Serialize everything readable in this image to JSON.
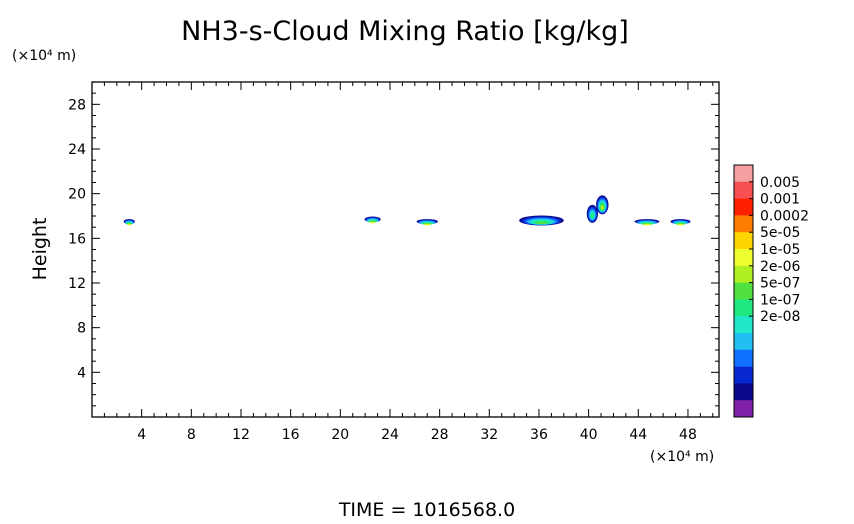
{
  "chart_data": {
    "type": "heatmap",
    "title": "NH3-s-Cloud Mixing Ratio [kg/kg]",
    "ylabel": "Height",
    "yunit": "(×10⁴ m)",
    "xunit": "(×10⁴ m)",
    "footer": "TIME  =  1016568.0",
    "xlim": [
      0,
      50.5
    ],
    "ylim": [
      0,
      30
    ],
    "xticks": [
      4,
      8,
      12,
      16,
      20,
      24,
      28,
      32,
      36,
      40,
      44,
      48
    ],
    "yticks": [
      4,
      8,
      12,
      16,
      20,
      24,
      28
    ],
    "colorbar": {
      "labels": [
        "0.005",
        "0.001",
        "0.0002",
        "5e-05",
        "1e-05",
        "2e-06",
        "5e-07",
        "1e-07",
        "2e-08"
      ],
      "colors": [
        "#f4a0a0",
        "#f85050",
        "#ff2000",
        "#ff7d00",
        "#ffd500",
        "#eeff30",
        "#b0f020",
        "#50e040",
        "#20e880",
        "#20e8c8",
        "#20c0f0",
        "#1070ff",
        "#0828d0",
        "#080888",
        "#8020a8"
      ]
    },
    "cloud_patches": [
      {
        "x": 3.0,
        "y": 17.5,
        "w": 0.9,
        "h": 0.45,
        "level": 9
      },
      {
        "x": 22.6,
        "y": 17.7,
        "w": 1.3,
        "h": 0.5,
        "level": 9
      },
      {
        "x": 27.0,
        "y": 17.5,
        "w": 1.7,
        "h": 0.45,
        "level": 9
      },
      {
        "x": 36.2,
        "y": 17.6,
        "w": 3.6,
        "h": 0.9,
        "level": 7
      },
      {
        "x": 40.3,
        "y": 18.2,
        "w": 0.9,
        "h": 1.6,
        "level": 6
      },
      {
        "x": 41.1,
        "y": 19.0,
        "w": 1.0,
        "h": 1.7,
        "level": 8
      },
      {
        "x": 44.7,
        "y": 17.5,
        "w": 2.0,
        "h": 0.45,
        "level": 9
      },
      {
        "x": 47.4,
        "y": 17.5,
        "w": 1.6,
        "h": 0.45,
        "level": 9
      }
    ]
  }
}
